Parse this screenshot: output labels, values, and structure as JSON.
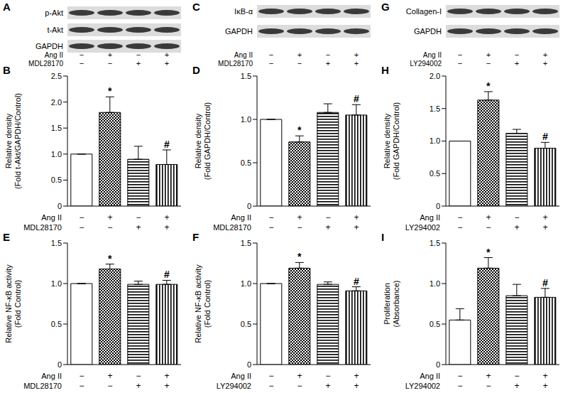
{
  "blots": [
    {
      "panel": "A",
      "bands": [
        "p-Akt",
        "t-Akt",
        "GAPDH"
      ],
      "treatments": [
        {
          "name": "Ang II",
          "signs": [
            "−",
            "+",
            "−",
            "+"
          ]
        },
        {
          "name": "MDL28170",
          "signs": [
            "−",
            "−",
            "+",
            "+"
          ]
        }
      ]
    },
    {
      "panel": "C",
      "bands": [
        "IκB-α",
        "GAPDH"
      ],
      "treatments": [
        {
          "name": "Ang II",
          "signs": [
            "−",
            "+",
            "−",
            "+"
          ]
        },
        {
          "name": "MDL28170",
          "signs": [
            "−",
            "−",
            "+",
            "+"
          ]
        }
      ]
    },
    {
      "panel": "G",
      "bands": [
        "Collagen-I",
        "GAPDH"
      ],
      "treatments": [
        {
          "name": "Ang II",
          "signs": [
            "−",
            "+",
            "−",
            "+"
          ]
        },
        {
          "name": "LY294002",
          "signs": [
            "−",
            "−",
            "+",
            "+"
          ]
        }
      ]
    }
  ],
  "chart_data": [
    {
      "panel": "B",
      "type": "bar",
      "y_label": [
        "Relative density",
        "(Fold t-Akt/GAPDH/Control)"
      ],
      "values": [
        1.0,
        1.8,
        0.9,
        0.8
      ],
      "errors": [
        null,
        0.3,
        0.25,
        0.28
      ],
      "marks": [
        null,
        "*",
        null,
        "#"
      ],
      "treatments": [
        {
          "name": "Ang II",
          "signs": [
            "−",
            "+",
            "−",
            "+"
          ]
        },
        {
          "name": "MDL28170",
          "signs": [
            "−",
            "−",
            "+",
            "+"
          ]
        }
      ],
      "ylim": [
        0,
        2.5
      ],
      "yticks": [
        0,
        0.5,
        {
          "value": 1,
          "label": "1.0"
        },
        1.5,
        {
          "value": 2,
          "label": "2.0"
        },
        2.5
      ]
    },
    {
      "panel": "D",
      "type": "bar",
      "y_label": [
        "Relative density",
        "(Fold GAPDH/Control)"
      ],
      "values": [
        1.0,
        0.74,
        1.08,
        1.05
      ],
      "errors": [
        null,
        0.07,
        0.1,
        0.12
      ],
      "marks": [
        null,
        "*",
        null,
        "#"
      ],
      "treatments": [
        {
          "name": "Ang II",
          "signs": [
            "−",
            "+",
            "−",
            "+"
          ]
        },
        {
          "name": "MDL28170",
          "signs": [
            "−",
            "−",
            "+",
            "+"
          ]
        }
      ],
      "ylim": [
        0,
        1.5
      ],
      "yticks": [
        0,
        0.5,
        {
          "value": 1,
          "label": "1.0"
        },
        1.5
      ]
    },
    {
      "panel": "H",
      "type": "bar",
      "y_label": [
        "Relative density",
        "(Fold GAPDH/Control)"
      ],
      "values": [
        1.0,
        1.63,
        1.12,
        0.89
      ],
      "errors": [
        null,
        0.13,
        0.06,
        0.09
      ],
      "marks": [
        null,
        "*",
        null,
        "#"
      ],
      "treatments": [
        {
          "name": "Ang II",
          "signs": [
            "−",
            "+",
            "−",
            "+"
          ]
        },
        {
          "name": "LY294002",
          "signs": [
            "−",
            "−",
            "+",
            "+"
          ]
        }
      ],
      "ylim": [
        0,
        2
      ],
      "yticks": [
        0,
        0.5,
        {
          "value": 1,
          "label": "1.0"
        },
        1.5,
        {
          "value": 2,
          "label": "2.0"
        }
      ]
    },
    {
      "panel": "E",
      "type": "bar",
      "y_label": [
        "Relative NF-κB activity",
        "(Fold Control)"
      ],
      "values": [
        1.0,
        1.18,
        0.99,
        0.99
      ],
      "errors": [
        null,
        0.06,
        0.04,
        0.05
      ],
      "marks": [
        null,
        "*",
        null,
        "#"
      ],
      "treatments": [
        {
          "name": "Ang II",
          "signs": [
            "−",
            "+",
            "−",
            "+"
          ]
        },
        {
          "name": "MDL28170",
          "signs": [
            "−",
            "−",
            "+",
            "+"
          ]
        }
      ],
      "ylim": [
        0,
        1.5
      ],
      "yticks": [
        0,
        0.5,
        {
          "value": 1,
          "label": "1.0"
        },
        1.5
      ]
    },
    {
      "panel": "F",
      "type": "bar",
      "y_label": [
        "Relative NF-κB activity",
        "(Fold Control)"
      ],
      "values": [
        1.0,
        1.19,
        0.99,
        0.91
      ],
      "errors": [
        null,
        0.07,
        0.03,
        0.05
      ],
      "marks": [
        null,
        "*",
        null,
        "#"
      ],
      "treatments": [
        {
          "name": "Ang II",
          "signs": [
            "−",
            "+",
            "−",
            "+"
          ]
        },
        {
          "name": "LY294002",
          "signs": [
            "−",
            "−",
            "+",
            "+"
          ]
        }
      ],
      "ylim": [
        0,
        1.5
      ],
      "yticks": [
        0,
        0.5,
        {
          "value": 1,
          "label": "1.0"
        },
        1.5
      ]
    },
    {
      "panel": "I",
      "type": "bar",
      "y_label": [
        "Proliferation",
        "(Absorbance)"
      ],
      "values": [
        0.55,
        1.19,
        0.85,
        0.83
      ],
      "errors": [
        0.14,
        0.13,
        0.14,
        0.11
      ],
      "marks": [
        null,
        "*",
        null,
        "#"
      ],
      "treatments": [
        {
          "name": "Ang II",
          "signs": [
            "−",
            "+",
            "−",
            "+"
          ]
        },
        {
          "name": "LY294002",
          "signs": [
            "−",
            "−",
            "+",
            "+"
          ]
        }
      ],
      "ylim": [
        0,
        1.5
      ],
      "yticks": [
        0,
        0.5,
        {
          "value": 1,
          "label": "1.0"
        },
        1.5
      ]
    }
  ]
}
